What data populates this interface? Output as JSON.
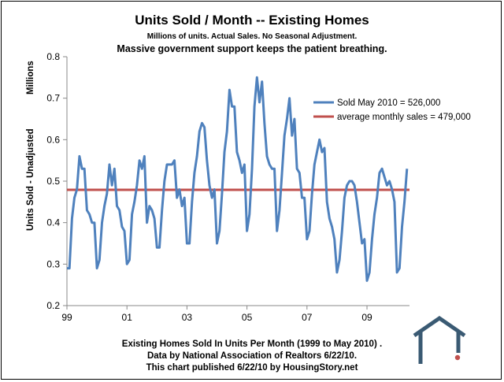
{
  "header": {
    "title": "Units Sold / Month -- Existing Homes",
    "subtitle": "Millions of units.  Actual Sales.  No Seasonal Adjustment.",
    "tagline": "Massive government support keeps the patient breathing."
  },
  "yaxis_labels": {
    "top": "Millions",
    "side": "Units Sold - Unadjusted"
  },
  "footer": {
    "line1": "Existing Homes Sold In Units Per Month (1999 to May 2010) .",
    "line2": "Data by National Association of Realtors 6/22/10.",
    "line3": "This chart published 6/22/10 by HousingStory.net"
  },
  "colors": {
    "series": "#4F81BD",
    "average": "#C0504D",
    "logo": "#3a5a73",
    "logo_dot": "#c0504d"
  },
  "logo_icon": "house-icon",
  "chart_data": {
    "type": "line",
    "title": "Units Sold / Month -- Existing Homes",
    "xlabel": "",
    "ylabel": "Millions",
    "ylim": [
      0.2,
      0.8
    ],
    "yticks": [
      0.2,
      0.3,
      0.4,
      0.5,
      0.6,
      0.7,
      0.8
    ],
    "ytick_labels": [
      "0.2",
      "0.3",
      "0.4",
      "0.5",
      "0.6",
      "0.7",
      "0.8"
    ],
    "xlim": [
      0,
      137
    ],
    "xticks": [
      0,
      24,
      48,
      72,
      96,
      120
    ],
    "xtick_labels": [
      "99",
      "01",
      "03",
      "05",
      "07",
      "09"
    ],
    "legend_position": "top-right",
    "series": [
      {
        "name": "Sold May 2010 = 526,000",
        "values": [
          0.29,
          0.29,
          0.41,
          0.46,
          0.48,
          0.56,
          0.53,
          0.53,
          0.43,
          0.42,
          0.4,
          0.4,
          0.29,
          0.31,
          0.4,
          0.44,
          0.47,
          0.54,
          0.49,
          0.53,
          0.44,
          0.43,
          0.39,
          0.38,
          0.3,
          0.31,
          0.42,
          0.45,
          0.49,
          0.55,
          0.53,
          0.56,
          0.4,
          0.44,
          0.43,
          0.41,
          0.34,
          0.34,
          0.43,
          0.5,
          0.54,
          0.54,
          0.54,
          0.55,
          0.46,
          0.48,
          0.44,
          0.46,
          0.35,
          0.35,
          0.45,
          0.52,
          0.56,
          0.62,
          0.64,
          0.63,
          0.55,
          0.49,
          0.46,
          0.48,
          0.35,
          0.38,
          0.47,
          0.57,
          0.62,
          0.72,
          0.68,
          0.68,
          0.57,
          0.55,
          0.52,
          0.54,
          0.38,
          0.42,
          0.53,
          0.68,
          0.75,
          0.69,
          0.74,
          0.64,
          0.56,
          0.54,
          0.53,
          0.53,
          0.38,
          0.43,
          0.52,
          0.61,
          0.65,
          0.7,
          0.61,
          0.65,
          0.53,
          0.52,
          0.46,
          0.46,
          0.36,
          0.38,
          0.47,
          0.54,
          0.57,
          0.6,
          0.57,
          0.58,
          0.45,
          0.41,
          0.39,
          0.36,
          0.28,
          0.31,
          0.38,
          0.46,
          0.49,
          0.5,
          0.5,
          0.49,
          0.45,
          0.4,
          0.35,
          0.36,
          0.26,
          0.28,
          0.36,
          0.42,
          0.46,
          0.52,
          0.53,
          0.51,
          0.49,
          0.5,
          0.48,
          0.45,
          0.28,
          0.29,
          0.39,
          0.45,
          0.53
        ]
      },
      {
        "name": "average monthly sales = 479,000",
        "constant": 0.479
      }
    ]
  }
}
